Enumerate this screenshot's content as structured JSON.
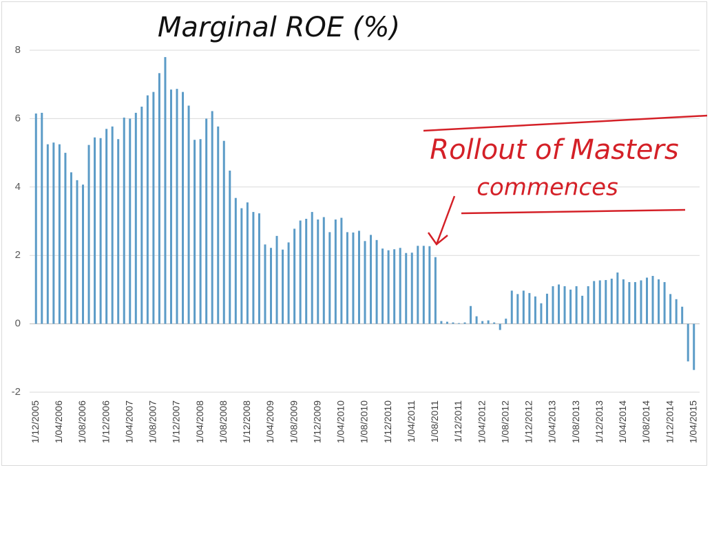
{
  "chart_data": {
    "type": "bar",
    "title": "Marginal ROE (%)",
    "annotation": [
      "Rollout of Masters",
      "commences"
    ],
    "color": "#5b9bc7",
    "grid": true,
    "ylim": [
      -2,
      8
    ],
    "yticks": [
      -2,
      0,
      2,
      4,
      6,
      8
    ],
    "categories": [
      "1/12/2005",
      null,
      null,
      null,
      "1/04/2006",
      null,
      null,
      null,
      "1/08/2006",
      null,
      null,
      null,
      "1/12/2006",
      null,
      null,
      null,
      "1/04/2007",
      null,
      null,
      null,
      "1/08/2007",
      null,
      null,
      null,
      "1/12/2007",
      null,
      null,
      null,
      "1/04/2008",
      null,
      null,
      null,
      "1/08/2008",
      null,
      null,
      null,
      "1/12/2008",
      null,
      null,
      null,
      "1/04/2009",
      null,
      null,
      null,
      "1/08/2009",
      null,
      null,
      null,
      "1/12/2009",
      null,
      null,
      null,
      "1/04/2010",
      null,
      null,
      null,
      "1/08/2010",
      null,
      null,
      null,
      "1/12/2010",
      null,
      null,
      null,
      "1/04/2011",
      null,
      null,
      null,
      "1/08/2011",
      null,
      null,
      null,
      "1/12/2011",
      null,
      null,
      null,
      "1/04/2012",
      null,
      null,
      null,
      "1/08/2012",
      null,
      null,
      null,
      "1/12/2012",
      null,
      null,
      null,
      "1/04/2013",
      null,
      null,
      null,
      "1/08/2013",
      null,
      null,
      null,
      "1/12/2013",
      null,
      null,
      null,
      "1/04/2014",
      null,
      null,
      null,
      "1/08/2014",
      null,
      null,
      null,
      "1/12/2014",
      null,
      null,
      null,
      "1/04/2015"
    ],
    "values": [
      6.15,
      6.17,
      5.25,
      5.3,
      5.25,
      5.0,
      4.43,
      4.2,
      4.07,
      5.23,
      5.45,
      5.43,
      5.7,
      5.77,
      5.4,
      6.03,
      6.0,
      6.17,
      6.35,
      6.68,
      6.78,
      7.33,
      7.8,
      6.85,
      6.87,
      6.78,
      6.38,
      5.38,
      5.4,
      6.0,
      6.22,
      5.77,
      5.35,
      4.48,
      3.68,
      3.38,
      3.55,
      3.27,
      3.23,
      2.32,
      2.22,
      2.57,
      2.17,
      2.38,
      2.78,
      3.02,
      3.07,
      3.27,
      3.05,
      3.12,
      2.68,
      3.05,
      3.1,
      2.68,
      2.67,
      2.72,
      2.42,
      2.6,
      2.45,
      2.2,
      2.15,
      2.18,
      2.22,
      2.07,
      2.08,
      2.28,
      2.28,
      2.27,
      1.95,
      0.08,
      0.06,
      0.04,
      0.02,
      0.04,
      0.52,
      0.22,
      0.08,
      0.1,
      0.04,
      -0.18,
      0.15,
      0.97,
      0.87,
      0.97,
      0.9,
      0.8,
      0.6,
      0.88,
      1.1,
      1.15,
      1.1,
      1.0,
      1.1,
      0.82,
      1.1,
      1.25,
      1.27,
      1.28,
      1.32,
      1.5,
      1.3,
      1.22,
      1.22,
      1.27,
      1.35,
      1.4,
      1.3,
      1.22,
      0.87,
      0.72,
      0.5,
      -1.1,
      -1.35
    ]
  }
}
